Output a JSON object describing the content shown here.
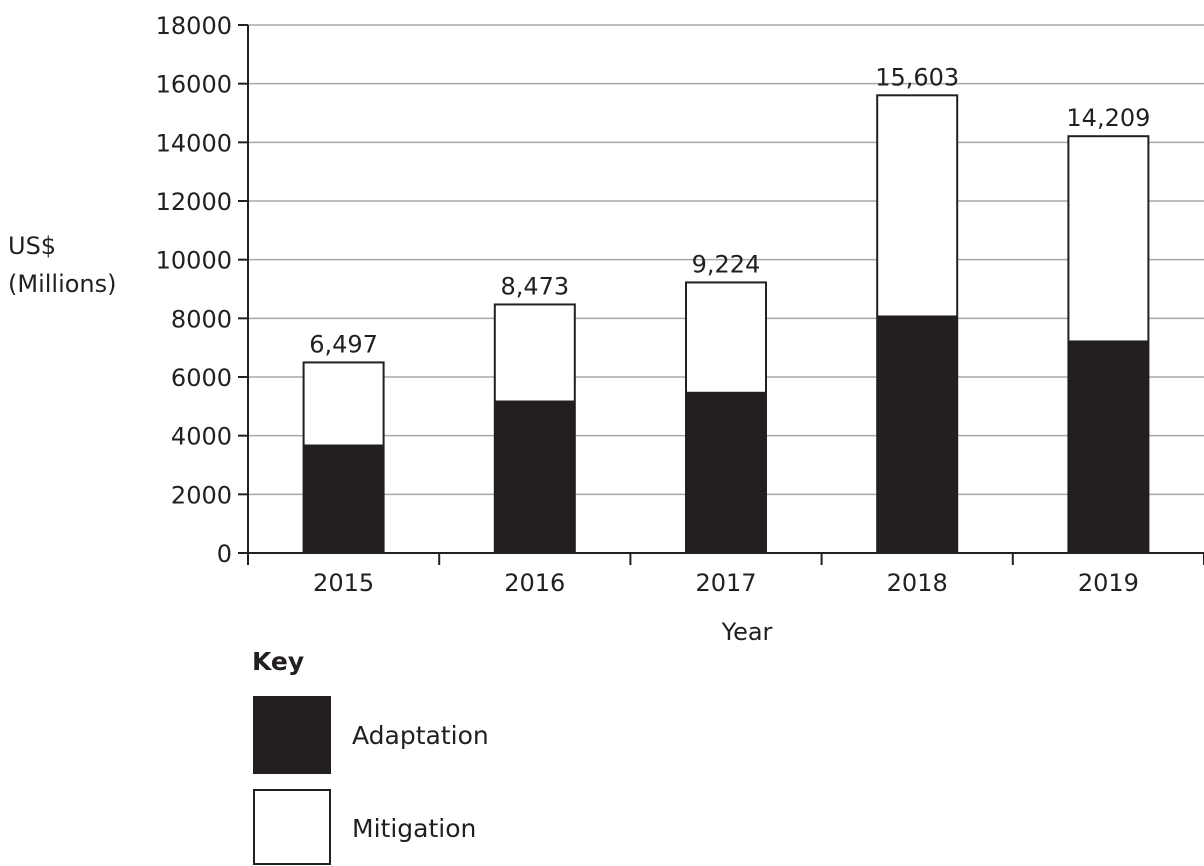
{
  "chart_data": {
    "type": "bar",
    "stacked": true,
    "categories": [
      "2015",
      "2016",
      "2017",
      "2018",
      "2019"
    ],
    "series": [
      {
        "name": "Adaptation",
        "values": [
          3700,
          5200,
          5500,
          8100,
          7250
        ],
        "color": "#231f20"
      },
      {
        "name": "Mitigation",
        "values": [
          2797,
          3273,
          3724,
          7503,
          6959
        ],
        "color": "#ffffff"
      }
    ],
    "totals": [
      6497,
      8473,
      9224,
      15603,
      14209
    ],
    "total_labels": [
      "6,497",
      "8,473",
      "9,224",
      "15,603",
      "14,209"
    ],
    "xlabel": "Year",
    "ylabel_lines": [
      "US$",
      "(Millions)"
    ],
    "ylim": [
      0,
      18000
    ],
    "yticks": [
      0,
      2000,
      4000,
      6000,
      8000,
      10000,
      12000,
      14000,
      16000,
      18000
    ],
    "grid": true,
    "legend": {
      "title": "Key",
      "position": "bottom-left"
    }
  }
}
